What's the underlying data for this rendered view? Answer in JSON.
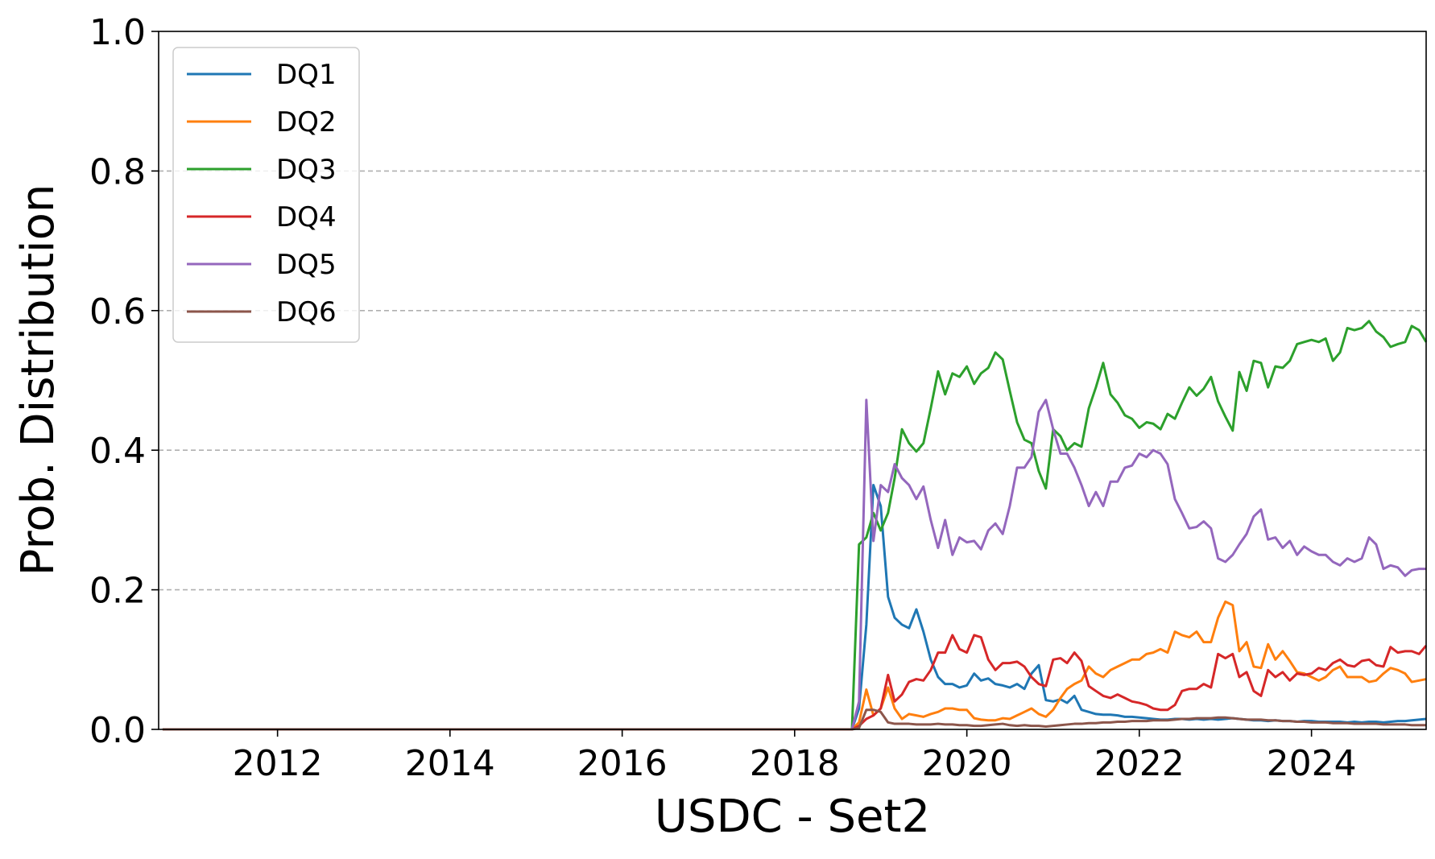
{
  "chart_data": {
    "type": "line",
    "title": "",
    "xlabel": "USDC - Set2",
    "ylabel": "Prob. Distribution",
    "xlim": [
      "2010-08-15",
      "2025-05-01"
    ],
    "ylim": [
      0,
      1
    ],
    "xticks": [
      {
        "date": "2012-01-01",
        "label": "2012"
      },
      {
        "date": "2014-01-01",
        "label": "2014"
      },
      {
        "date": "2016-01-01",
        "label": "2016"
      },
      {
        "date": "2018-01-01",
        "label": "2018"
      },
      {
        "date": "2020-01-01",
        "label": "2020"
      },
      {
        "date": "2022-01-01",
        "label": "2022"
      },
      {
        "date": "2024-01-01",
        "label": "2024"
      }
    ],
    "yticks": [
      {
        "value": 0.0,
        "label": "0.0"
      },
      {
        "value": 0.2,
        "label": "0.2"
      },
      {
        "value": 0.4,
        "label": "0.4"
      },
      {
        "value": 0.6,
        "label": "0.6"
      },
      {
        "value": 0.8,
        "label": "0.8"
      },
      {
        "value": 1.0,
        "label": "1.0"
      }
    ],
    "grid": "horizontal dashed",
    "legend_position": "upper-left",
    "x": [
      "2010-09-01",
      "2011-01-01",
      "2011-05-01",
      "2011-09-01",
      "2012-01-01",
      "2012-05-01",
      "2012-09-01",
      "2013-01-01",
      "2013-05-01",
      "2013-09-01",
      "2014-01-01",
      "2014-05-01",
      "2014-09-01",
      "2015-01-01",
      "2015-05-01",
      "2015-09-01",
      "2016-01-01",
      "2016-05-01",
      "2016-09-01",
      "2017-01-01",
      "2017-05-01",
      "2017-09-01",
      "2018-01-01",
      "2018-05-01",
      "2018-09-01",
      "2018-10-01",
      "2018-11-01",
      "2018-12-01",
      "2019-01-01",
      "2019-02-01",
      "2019-03-01",
      "2019-04-01",
      "2019-05-01",
      "2019-06-01",
      "2019-07-01",
      "2019-08-01",
      "2019-09-01",
      "2019-10-01",
      "2019-11-01",
      "2019-12-01",
      "2020-01-01",
      "2020-02-01",
      "2020-03-01",
      "2020-04-01",
      "2020-05-01",
      "2020-06-01",
      "2020-07-01",
      "2020-08-01",
      "2020-09-01",
      "2020-10-01",
      "2020-11-01",
      "2020-12-01",
      "2021-01-01",
      "2021-02-01",
      "2021-03-01",
      "2021-04-01",
      "2021-05-01",
      "2021-06-01",
      "2021-07-01",
      "2021-08-01",
      "2021-09-01",
      "2021-10-01",
      "2021-11-01",
      "2021-12-01",
      "2022-01-01",
      "2022-02-01",
      "2022-03-01",
      "2022-04-01",
      "2022-05-01",
      "2022-06-01",
      "2022-07-01",
      "2022-08-01",
      "2022-09-01",
      "2022-10-01",
      "2022-11-01",
      "2022-12-01",
      "2023-01-01",
      "2023-02-01",
      "2023-03-01",
      "2023-04-01",
      "2023-05-01",
      "2023-06-01",
      "2023-07-01",
      "2023-08-01",
      "2023-09-01",
      "2023-10-01",
      "2023-11-01",
      "2023-12-01",
      "2024-01-01",
      "2024-02-01",
      "2024-03-01",
      "2024-04-01",
      "2024-05-01",
      "2024-06-01",
      "2024-07-01",
      "2024-08-01",
      "2024-09-01",
      "2024-10-01",
      "2024-11-01",
      "2024-12-01",
      "2025-01-01",
      "2025-02-01",
      "2025-03-01",
      "2025-04-01",
      "2025-05-01"
    ],
    "series": [
      {
        "name": "DQ1",
        "color": "#1f77b4",
        "values": [
          0,
          0,
          0,
          0,
          0,
          0,
          0,
          0,
          0,
          0,
          0,
          0,
          0,
          0,
          0,
          0,
          0,
          0,
          0,
          0,
          0,
          0,
          0,
          0,
          0.0,
          0.03,
          0.15,
          0.35,
          0.32,
          0.19,
          0.16,
          0.15,
          0.145,
          0.172,
          0.14,
          0.1,
          0.075,
          0.065,
          0.065,
          0.06,
          0.063,
          0.08,
          0.07,
          0.073,
          0.065,
          0.063,
          0.06,
          0.065,
          0.058,
          0.08,
          0.092,
          0.042,
          0.04,
          0.043,
          0.038,
          0.048,
          0.028,
          0.025,
          0.022,
          0.021,
          0.021,
          0.02,
          0.018,
          0.018,
          0.017,
          0.016,
          0.015,
          0.014,
          0.014,
          0.015,
          0.015,
          0.014,
          0.015,
          0.014,
          0.015,
          0.014,
          0.015,
          0.016,
          0.015,
          0.014,
          0.013,
          0.013,
          0.012,
          0.013,
          0.012,
          0.012,
          0.011,
          0.012,
          0.012,
          0.011,
          0.011,
          0.011,
          0.011,
          0.01,
          0.011,
          0.01,
          0.011,
          0.011,
          0.01,
          0.011,
          0.012,
          0.012,
          0.013,
          0.014,
          0.015
        ]
      },
      {
        "name": "DQ2",
        "color": "#ff7f0e",
        "values": [
          0,
          0,
          0,
          0,
          0,
          0,
          0,
          0,
          0,
          0,
          0,
          0,
          0,
          0,
          0,
          0,
          0,
          0,
          0,
          0,
          0,
          0,
          0,
          0,
          0.0,
          0.01,
          0.057,
          0.02,
          0.03,
          0.06,
          0.03,
          0.015,
          0.022,
          0.02,
          0.018,
          0.022,
          0.025,
          0.03,
          0.03,
          0.028,
          0.028,
          0.016,
          0.014,
          0.013,
          0.013,
          0.016,
          0.015,
          0.02,
          0.025,
          0.03,
          0.022,
          0.018,
          0.028,
          0.045,
          0.058,
          0.065,
          0.07,
          0.09,
          0.08,
          0.075,
          0.085,
          0.09,
          0.095,
          0.1,
          0.1,
          0.108,
          0.11,
          0.115,
          0.11,
          0.14,
          0.135,
          0.132,
          0.14,
          0.125,
          0.125,
          0.16,
          0.183,
          0.178,
          0.112,
          0.125,
          0.09,
          0.088,
          0.122,
          0.1,
          0.112,
          0.098,
          0.082,
          0.08,
          0.075,
          0.07,
          0.075,
          0.085,
          0.09,
          0.075,
          0.075,
          0.075,
          0.068,
          0.07,
          0.08,
          0.088,
          0.085,
          0.08,
          0.068,
          0.07,
          0.072
        ]
      },
      {
        "name": "DQ3",
        "color": "#2ca02c",
        "values": [
          0,
          0,
          0,
          0,
          0,
          0,
          0,
          0,
          0,
          0,
          0,
          0,
          0,
          0,
          0,
          0,
          0,
          0,
          0,
          0,
          0,
          0,
          0,
          0,
          0.0,
          0.265,
          0.275,
          0.31,
          0.285,
          0.31,
          0.36,
          0.43,
          0.41,
          0.398,
          0.41,
          0.46,
          0.513,
          0.48,
          0.51,
          0.505,
          0.52,
          0.495,
          0.51,
          0.518,
          0.54,
          0.53,
          0.485,
          0.44,
          0.415,
          0.41,
          0.37,
          0.345,
          0.43,
          0.42,
          0.4,
          0.41,
          0.405,
          0.46,
          0.49,
          0.525,
          0.48,
          0.468,
          0.45,
          0.445,
          0.432,
          0.44,
          0.438,
          0.43,
          0.452,
          0.445,
          0.468,
          0.49,
          0.478,
          0.488,
          0.505,
          0.47,
          0.448,
          0.428,
          0.512,
          0.485,
          0.528,
          0.525,
          0.49,
          0.52,
          0.518,
          0.528,
          0.552,
          0.555,
          0.558,
          0.555,
          0.56,
          0.528,
          0.54,
          0.575,
          0.572,
          0.575,
          0.585,
          0.57,
          0.562,
          0.548,
          0.552,
          0.555,
          0.578,
          0.572,
          0.555
        ]
      },
      {
        "name": "DQ4",
        "color": "#d62728",
        "values": [
          0,
          0,
          0,
          0,
          0,
          0,
          0,
          0,
          0,
          0,
          0,
          0,
          0,
          0,
          0,
          0,
          0,
          0,
          0,
          0,
          0,
          0,
          0,
          0,
          0.0,
          0.005,
          0.015,
          0.02,
          0.03,
          0.078,
          0.04,
          0.05,
          0.068,
          0.072,
          0.07,
          0.085,
          0.11,
          0.11,
          0.135,
          0.115,
          0.11,
          0.135,
          0.132,
          0.1,
          0.085,
          0.095,
          0.095,
          0.097,
          0.09,
          0.075,
          0.065,
          0.062,
          0.1,
          0.102,
          0.095,
          0.11,
          0.098,
          0.062,
          0.055,
          0.048,
          0.045,
          0.05,
          0.045,
          0.04,
          0.038,
          0.035,
          0.03,
          0.028,
          0.028,
          0.035,
          0.055,
          0.058,
          0.058,
          0.065,
          0.06,
          0.108,
          0.102,
          0.108,
          0.075,
          0.082,
          0.055,
          0.048,
          0.085,
          0.075,
          0.082,
          0.07,
          0.08,
          0.078,
          0.08,
          0.088,
          0.085,
          0.095,
          0.1,
          0.092,
          0.09,
          0.098,
          0.1,
          0.092,
          0.09,
          0.118,
          0.11,
          0.112,
          0.112,
          0.108,
          0.12
        ]
      },
      {
        "name": "DQ5",
        "color": "#9467bd",
        "values": [
          0,
          0,
          0,
          0,
          0,
          0,
          0,
          0,
          0,
          0,
          0,
          0,
          0,
          0,
          0,
          0,
          0,
          0,
          0,
          0,
          0,
          0,
          0,
          0,
          0.0,
          0.04,
          0.472,
          0.27,
          0.35,
          0.34,
          0.38,
          0.36,
          0.35,
          0.33,
          0.348,
          0.3,
          0.26,
          0.3,
          0.25,
          0.275,
          0.268,
          0.27,
          0.258,
          0.285,
          0.295,
          0.28,
          0.32,
          0.375,
          0.375,
          0.39,
          0.455,
          0.472,
          0.43,
          0.395,
          0.395,
          0.375,
          0.35,
          0.32,
          0.34,
          0.32,
          0.355,
          0.355,
          0.375,
          0.378,
          0.395,
          0.39,
          0.4,
          0.395,
          0.38,
          0.33,
          0.31,
          0.288,
          0.29,
          0.298,
          0.288,
          0.245,
          0.24,
          0.25,
          0.265,
          0.28,
          0.305,
          0.315,
          0.272,
          0.275,
          0.26,
          0.27,
          0.25,
          0.262,
          0.255,
          0.25,
          0.25,
          0.24,
          0.235,
          0.245,
          0.24,
          0.245,
          0.275,
          0.265,
          0.23,
          0.235,
          0.232,
          0.22,
          0.228,
          0.23,
          0.23
        ]
      },
      {
        "name": "DQ6",
        "color": "#8c564b",
        "values": [
          0,
          0,
          0,
          0,
          0,
          0,
          0,
          0,
          0,
          0,
          0,
          0,
          0,
          0,
          0,
          0,
          0,
          0,
          0,
          0,
          0,
          0,
          0,
          0,
          0.0,
          0.002,
          0.028,
          0.028,
          0.025,
          0.01,
          0.008,
          0.008,
          0.008,
          0.007,
          0.007,
          0.007,
          0.008,
          0.007,
          0.007,
          0.006,
          0.006,
          0.005,
          0.005,
          0.006,
          0.007,
          0.008,
          0.006,
          0.005,
          0.006,
          0.005,
          0.005,
          0.004,
          0.005,
          0.006,
          0.007,
          0.008,
          0.008,
          0.009,
          0.009,
          0.01,
          0.01,
          0.011,
          0.011,
          0.012,
          0.012,
          0.012,
          0.013,
          0.013,
          0.013,
          0.014,
          0.015,
          0.015,
          0.016,
          0.016,
          0.016,
          0.017,
          0.017,
          0.016,
          0.015,
          0.014,
          0.014,
          0.014,
          0.013,
          0.013,
          0.012,
          0.012,
          0.011,
          0.011,
          0.01,
          0.01,
          0.01,
          0.009,
          0.009,
          0.009,
          0.008,
          0.008,
          0.008,
          0.008,
          0.007,
          0.007,
          0.007,
          0.007,
          0.006,
          0.006,
          0.006
        ]
      }
    ]
  }
}
